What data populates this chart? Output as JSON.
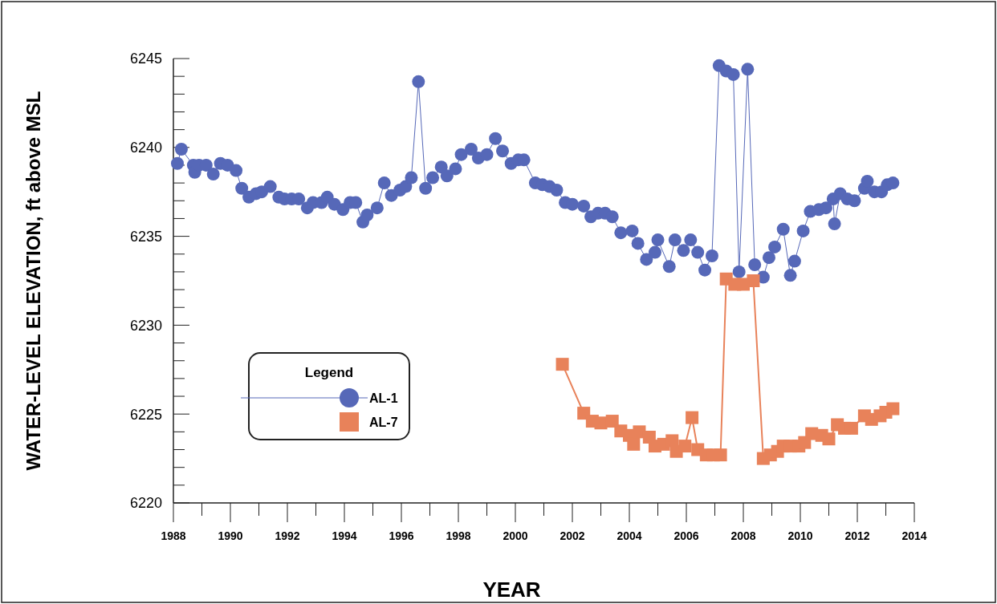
{
  "chart_data": {
    "type": "line",
    "xlabel": "YEAR",
    "ylabel": "WATER-LEVEL ELEVATION, ft above MSL",
    "legend_title": "Legend",
    "legend": "bottom left",
    "marker": "circle",
    "grid": false,
    "xlim": [
      1988,
      2014
    ],
    "xticks": [
      1988,
      {
        "value": 1989,
        "label": null
      },
      1990,
      {
        "value": 1991,
        "label": null
      },
      1992,
      {
        "value": 1993,
        "label": null
      },
      1994,
      {
        "value": 1995,
        "label": null
      },
      1996,
      {
        "value": 1997,
        "label": null
      },
      1998,
      {
        "value": 1999,
        "label": null
      },
      2000,
      {
        "value": 2001,
        "label": null
      },
      2002,
      {
        "value": 2003,
        "label": null
      },
      2004,
      {
        "value": 2005,
        "label": null
      },
      2006,
      {
        "value": 2007,
        "label": null
      },
      2008,
      {
        "value": 2009,
        "label": null
      },
      2010,
      {
        "value": 2011,
        "label": null
      },
      2012,
      {
        "value": 2013,
        "label": null
      },
      2014
    ],
    "ylim": [
      6220,
      6245
    ],
    "yticks": [
      6220,
      {
        "value": 6221,
        "label": null
      },
      {
        "value": 6222,
        "label": null
      },
      {
        "value": 6223,
        "label": null
      },
      {
        "value": 6224,
        "label": null
      },
      6225,
      {
        "value": 6226,
        "label": null
      },
      {
        "value": 6227,
        "label": null
      },
      {
        "value": 6228,
        "label": null
      },
      {
        "value": 6229,
        "label": null
      },
      6230,
      {
        "value": 6231,
        "label": null
      },
      {
        "value": 6232,
        "label": null
      },
      {
        "value": 6233,
        "label": null
      },
      {
        "value": 6234,
        "label": null
      },
      6235,
      {
        "value": 6236,
        "label": null
      },
      {
        "value": 6237,
        "label": null
      },
      {
        "value": 6238,
        "label": null
      },
      {
        "value": 6239,
        "label": null
      },
      6240,
      {
        "value": 6241,
        "label": null
      },
      {
        "value": 6242,
        "label": null
      },
      {
        "value": 6243,
        "label": null
      },
      {
        "value": 6244,
        "label": null
      },
      6245
    ],
    "series": [
      {
        "name": "AL-1",
        "color": "#5668b8",
        "marker": "circle",
        "x": [
          1988.14,
          1988.28,
          1988.7,
          1988.75,
          1988.9,
          1989.15,
          1989.4,
          1989.65,
          1989.9,
          1990.2,
          1990.4,
          1990.65,
          1990.9,
          1991.1,
          1991.4,
          1991.7,
          1991.9,
          1992.15,
          1992.4,
          1992.7,
          1992.9,
          1993.2,
          1993.4,
          1993.65,
          1993.95,
          1994.2,
          1994.4,
          1994.65,
          1994.8,
          1995.15,
          1995.4,
          1995.65,
          1995.95,
          1996.15,
          1996.35,
          1996.6,
          1996.85,
          1997.1,
          1997.4,
          1997.6,
          1997.9,
          1998.1,
          1998.45,
          1998.7,
          1999.0,
          1999.3,
          1999.55,
          1999.85,
          2000.1,
          2000.3,
          2000.7,
          2000.95,
          2001.2,
          2001.45,
          2001.75,
          2002.0,
          2002.4,
          2002.65,
          2002.9,
          2003.15,
          2003.4,
          2003.7,
          2004.1,
          2004.3,
          2004.6,
          2004.9,
          2005.0,
          2005.4,
          2005.6,
          2005.9,
          2006.15,
          2006.4,
          2006.65,
          2006.9,
          2007.15,
          2007.4,
          2007.65,
          2007.85,
          2008.15,
          2008.4,
          2008.7,
          2008.9,
          2009.1,
          2009.4,
          2009.65,
          2009.8,
          2010.1,
          2010.35,
          2010.65,
          2010.9,
          2011.15,
          2011.2,
          2011.4,
          2011.65,
          2011.9,
          2012.25,
          2012.35,
          2012.6,
          2012.85,
          2013.05,
          2013.25
        ],
        "values": [
          6239.1,
          6239.9,
          6239.0,
          6238.6,
          6239.0,
          6239.0,
          6238.5,
          6239.1,
          6239.0,
          6238.7,
          6237.7,
          6237.2,
          6237.4,
          6237.5,
          6237.8,
          6237.2,
          6237.1,
          6237.1,
          6237.1,
          6236.6,
          6236.9,
          6236.9,
          6237.2,
          6236.8,
          6236.5,
          6236.9,
          6236.9,
          6235.8,
          6236.2,
          6236.6,
          6238.0,
          6237.3,
          6237.6,
          6237.8,
          6238.3,
          6243.7,
          6237.7,
          6238.3,
          6238.9,
          6238.4,
          6238.8,
          6239.6,
          6239.9,
          6239.4,
          6239.6,
          6240.5,
          6239.8,
          6239.1,
          6239.3,
          6239.3,
          6238.0,
          6237.9,
          6237.8,
          6237.6,
          6236.9,
          6236.8,
          6236.7,
          6236.1,
          6236.3,
          6236.3,
          6236.1,
          6235.2,
          6235.3,
          6234.6,
          6233.7,
          6234.1,
          6234.8,
          6233.3,
          6234.8,
          6234.2,
          6234.8,
          6234.1,
          6233.1,
          6233.9,
          6244.6,
          6244.3,
          6244.1,
          6233.0,
          6244.4,
          6233.4,
          6232.7,
          6233.8,
          6234.4,
          6235.4,
          6232.8,
          6233.6,
          6235.3,
          6236.4,
          6236.5,
          6236.6,
          6237.1,
          6235.7,
          6237.4,
          6237.1,
          6237.0,
          6237.7,
          6238.1,
          6237.5,
          6237.5,
          6237.9,
          6238.0
        ]
      },
      {
        "name": "AL-7",
        "color": "#e8825a",
        "marker": "square",
        "x": [
          2001.65,
          2002.4,
          2002.7,
          2003.0,
          2003.4,
          2003.7,
          2004.0,
          2004.15,
          2004.35,
          2004.7,
          2004.9,
          2005.2,
          2005.5,
          2005.65,
          2005.95,
          2006.2,
          2006.4,
          2006.7,
          2006.95,
          2007.2,
          2007.4,
          2007.7,
          2008.0,
          2008.35,
          2008.7,
          2008.95,
          2009.2,
          2009.4,
          2009.65,
          2009.95,
          2010.15,
          2010.4,
          2010.75,
          2011.0,
          2011.3,
          2011.55,
          2011.8,
          2012.25,
          2012.5,
          2012.8,
          2013.0,
          2013.25
        ],
        "values": [
          6227.8,
          6225.05,
          6224.6,
          6224.5,
          6224.6,
          6224.05,
          6223.8,
          6223.3,
          6224.0,
          6223.7,
          6223.2,
          6223.3,
          6223.5,
          6222.9,
          6223.2,
          6224.8,
          6223.0,
          6222.7,
          6222.7,
          6222.7,
          6232.6,
          6232.3,
          6232.3,
          6232.5,
          6222.5,
          6222.7,
          6222.9,
          6223.2,
          6223.2,
          6223.2,
          6223.4,
          6223.9,
          6223.8,
          6223.6,
          6224.4,
          6224.2,
          6224.2,
          6224.9,
          6224.7,
          6224.9,
          6225.1,
          6225.3
        ]
      }
    ]
  }
}
